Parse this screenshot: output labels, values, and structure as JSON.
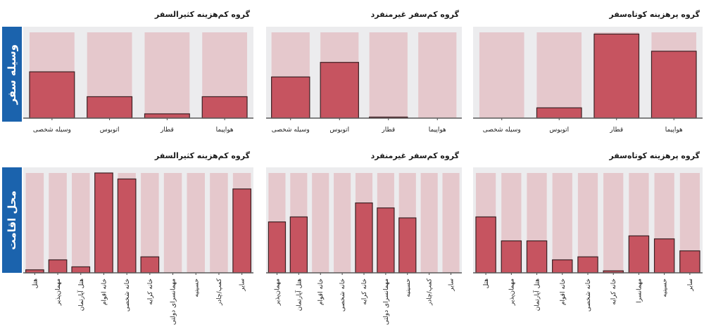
{
  "row_labels": [
    "وسیله سفر",
    "محل اقامت"
  ],
  "chart_data": [
    {
      "type": "bar",
      "title": "گروه کم‌هزینه کثیرالسفر",
      "categories": [
        "وسیله شخصی",
        "اتوبوس",
        "قطار",
        "هواپیما"
      ],
      "values": [
        54,
        25,
        5,
        25
      ],
      "ylim": [
        0,
        100
      ],
      "grid": false
    },
    {
      "type": "bar",
      "title": "گروه کم‌سفر غیرمنفرد",
      "categories": [
        "وسیله شخصی",
        "اتوبوس",
        "قطار",
        "هواپیما"
      ],
      "values": [
        48,
        65,
        1,
        0
      ],
      "ylim": [
        0,
        100
      ],
      "grid": false
    },
    {
      "type": "bar",
      "title": "گروه پرهزینه کوتاه‌سفر",
      "categories": [
        "وسیله شخصی",
        "اتوبوس",
        "قطار",
        "هواپیما"
      ],
      "values": [
        0,
        12,
        98,
        78
      ],
      "ylim": [
        0,
        100
      ],
      "grid": false
    },
    {
      "type": "bar",
      "title": "گروه کم‌هزینه کثیرالسفر",
      "categories": [
        "هتل",
        "مهمان‌پذیر",
        "هتل آپارتمان",
        "خانه اقوام",
        "خانه شخصی",
        "خانه کرایه",
        "مهمانسرای دولتی",
        "حسینیه",
        "کمپ/چادر",
        "سایر"
      ],
      "values": [
        3,
        13,
        6,
        100,
        94,
        16,
        0,
        0,
        0,
        84
      ],
      "ylim": [
        0,
        100
      ],
      "grid": false
    },
    {
      "type": "bar",
      "title": "گروه کم‌سفر غیرمنفرد",
      "categories": [
        "مهمان‌پذیر",
        "هتل آپارتمان",
        "خانه اقوام",
        "خانه شخصی",
        "خانه کرایه",
        "مهمانسرای دولتی",
        "حسینیه",
        "کمپ/چادر",
        "سایر"
      ],
      "values": [
        51,
        56,
        0,
        0,
        70,
        65,
        55,
        0,
        0
      ],
      "ylim": [
        0,
        100
      ],
      "grid": false
    },
    {
      "type": "bar",
      "title": "گروه پرهزینه کوتاه‌سفر",
      "categories": [
        "هتل",
        "مهمان‌پذیر",
        "هتل آپارتمان",
        "خانه اقوام",
        "خانه شخصی",
        "خانه کرایه",
        "مهمانسرا",
        "حسینیه",
        "سایر"
      ],
      "values": [
        56,
        32,
        32,
        13,
        16,
        2,
        37,
        34,
        22
      ],
      "ylim": [
        0,
        100
      ],
      "grid": false
    }
  ]
}
